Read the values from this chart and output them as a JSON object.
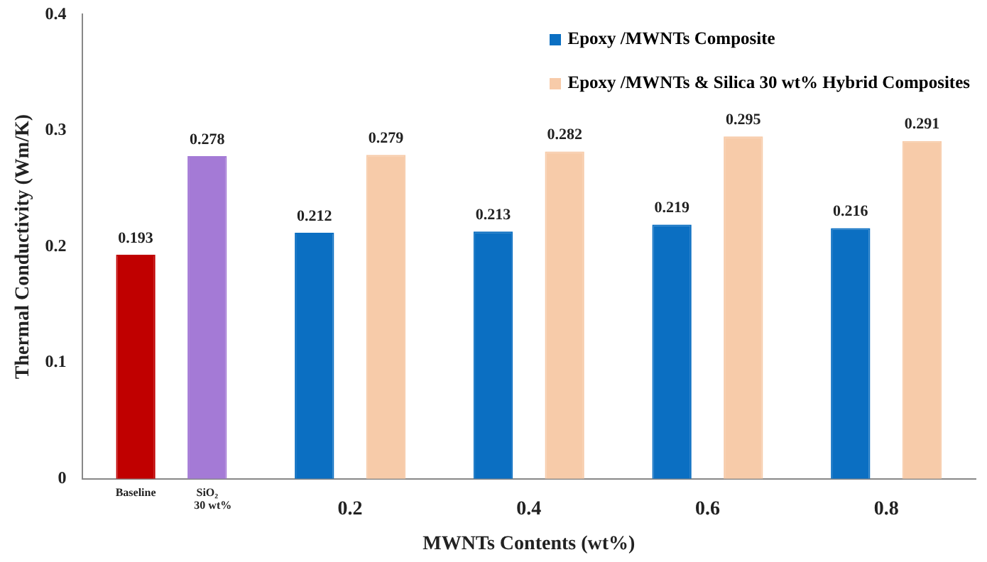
{
  "chart_data": {
    "type": "bar",
    "categories": [
      null,
      "0.2",
      "0.4",
      "0.6",
      "0.8"
    ],
    "series": [
      {
        "name": "Epoxy /MWNTs Composite",
        "color": "#0b6fc2",
        "colors": [
          "#c00000",
          "#0b6fc2",
          "#0b6fc2",
          "#0b6fc2",
          "#0b6fc2"
        ],
        "values": [
          0.193,
          0.212,
          0.213,
          0.219,
          0.216
        ]
      },
      {
        "name": "Epoxy /MWNTs & Silica 30 wt% Hybrid Composites",
        "color": "#f7cba9",
        "colors": [
          "#a47ad6",
          "#f7cba9",
          "#f7cba9",
          "#f7cba9",
          "#f7cba9"
        ],
        "values": [
          0.278,
          0.279,
          0.282,
          0.295,
          0.291
        ]
      }
    ],
    "annotations": [
      "Baseline",
      "SiO₂ 30 wt%"
    ],
    "xlabel": "MWNTs Contents (wt%)",
    "ylabel": "Thermal Conductivity (Wm/K)",
    "ylim": [
      0,
      0.4
    ],
    "yticks": [
      0,
      0.1,
      0.2,
      0.3,
      0.4
    ],
    "data_labels": true,
    "legend": "top right",
    "grid": false
  }
}
